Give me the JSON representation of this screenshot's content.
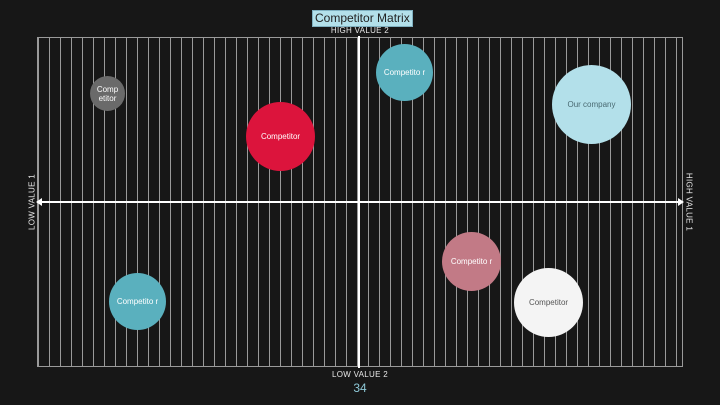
{
  "title": "Competitor Matrix",
  "axes": {
    "top": "HIGH VALUE 2",
    "bottom": "LOW VALUE 2",
    "left": "LOW VALUE 1",
    "right": "HIGH VALUE 1"
  },
  "page_number": "34",
  "colors": {
    "background": "#171717",
    "teal": "#5ab0be",
    "gray": "#6a6a6a",
    "red": "#dc143c",
    "light_blue": "#b3e0ea",
    "rose": "#c27a86",
    "white": "#f4f4f4"
  },
  "bubbles": [
    {
      "label": "Comp etitor",
      "color": "#6a6a6a",
      "text_color": "#ffffff"
    },
    {
      "label": "Competitor",
      "color": "#dc143c",
      "text_color": "#ffffff"
    },
    {
      "label": "Competito r",
      "color": "#5ab0be",
      "text_color": "#ffffff"
    },
    {
      "label": "Our company",
      "color": "#b3e0ea",
      "text_color": "#4a6a72"
    },
    {
      "label": "Competito r",
      "color": "#c27a86",
      "text_color": "#ffffff"
    },
    {
      "label": "Competito r",
      "color": "#5ab0be",
      "text_color": "#ffffff"
    },
    {
      "label": "Competitor",
      "color": "#f4f4f4",
      "text_color": "#555555"
    }
  ]
}
